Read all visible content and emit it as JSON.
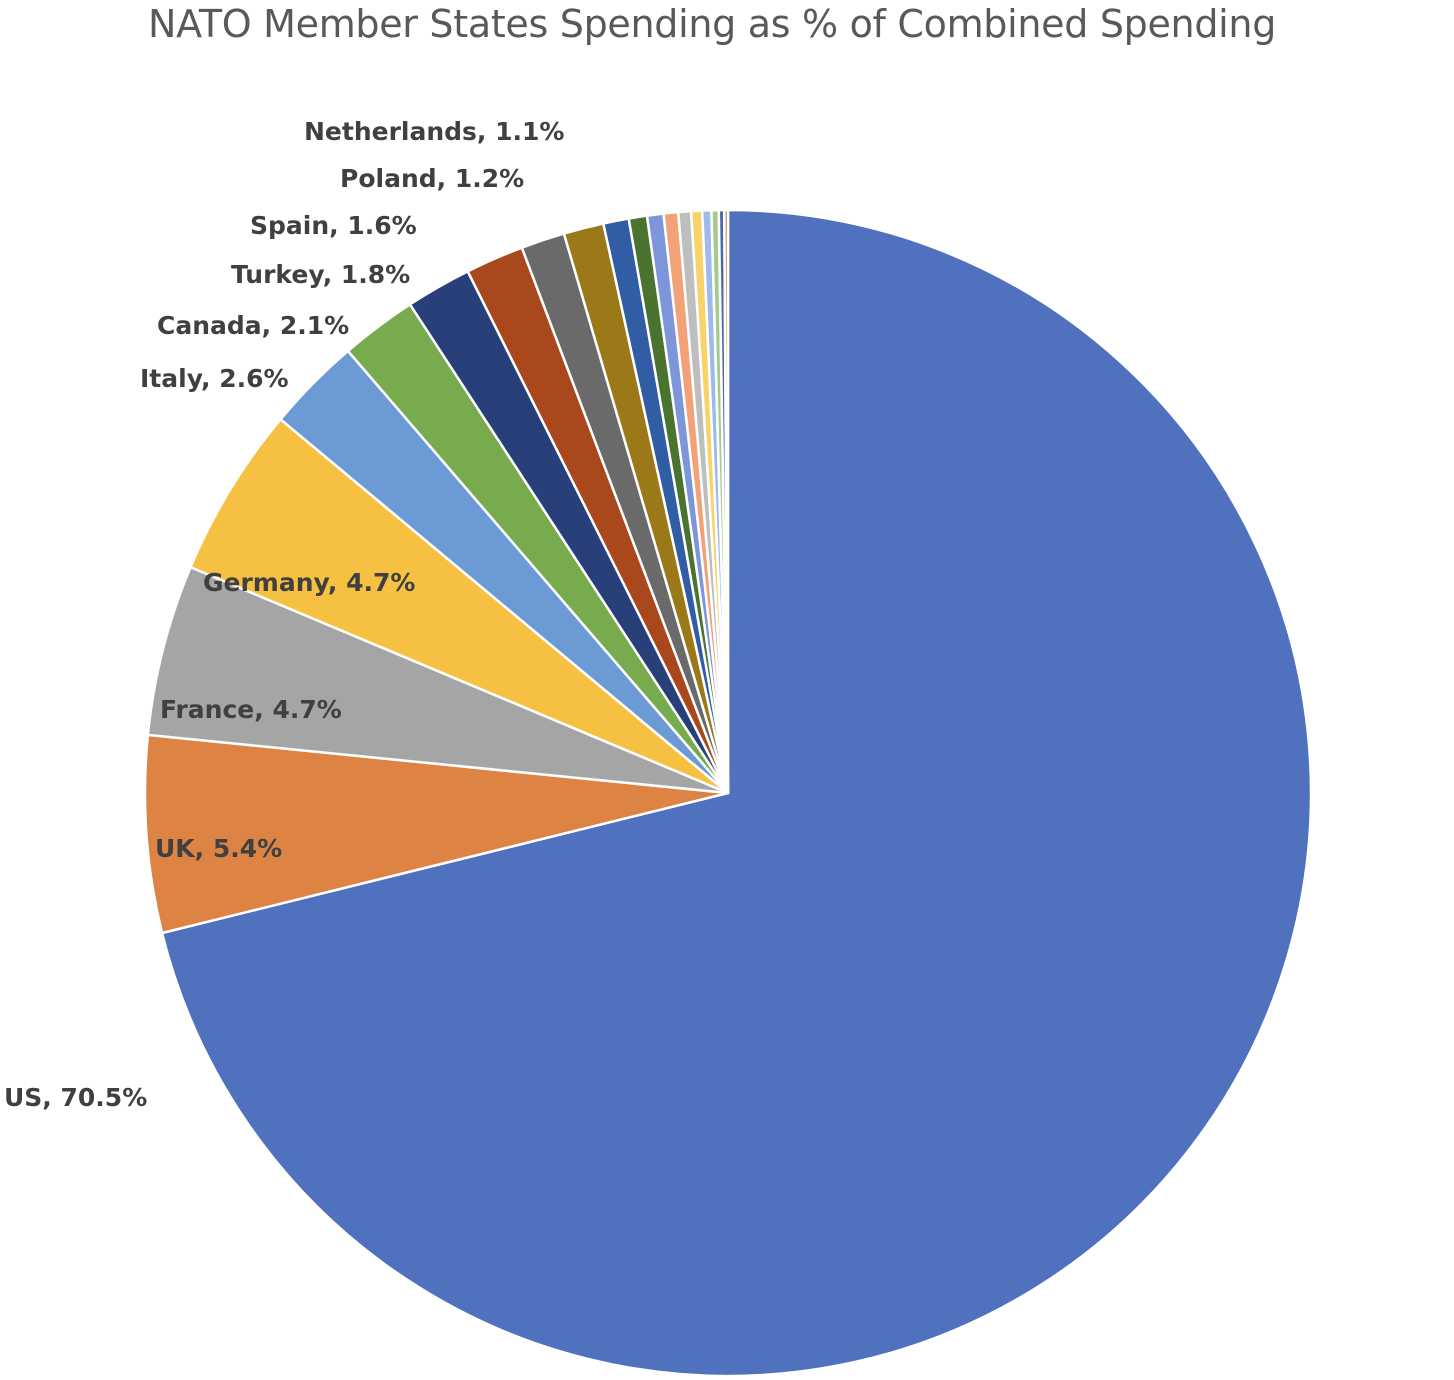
{
  "chart_data": {
    "type": "pie",
    "title": "NATO Member States Spending as % of Combined Spending",
    "unit": "%",
    "slices": [
      {
        "label": "US, 70.5%",
        "value": 70.5,
        "color": "#4f71be"
      },
      {
        "label": "UK, 5.4%",
        "value": 5.4,
        "color": "#dd8344"
      },
      {
        "label": "France, 4.7%",
        "value": 4.7,
        "color": "#a5a5a5"
      },
      {
        "label": "Germany, 4.7%",
        "value": 4.7,
        "color": "#f6c143"
      },
      {
        "label": "Italy, 2.6%",
        "value": 2.6,
        "color": "#6c9ad5"
      },
      {
        "label": "Canada, 2.1%",
        "value": 2.1,
        "color": "#78ab4d"
      },
      {
        "label": "Turkey, 1.8%",
        "value": 1.8,
        "color": "#283f7a"
      },
      {
        "label": "Spain, 1.6%",
        "value": 1.6,
        "color": "#a9481c"
      },
      {
        "label": "Poland, 1.2%",
        "value": 1.2,
        "color": "#6a6a6a"
      },
      {
        "label": "Netherlands, 1.1%",
        "value": 1.1,
        "color": "#9b7818"
      },
      {
        "label": "",
        "value": 0.7,
        "color": "#305da3"
      },
      {
        "label": "",
        "value": 0.5,
        "color": "#4a7330"
      },
      {
        "label": "",
        "value": 0.45,
        "color": "#7d96d9"
      },
      {
        "label": "",
        "value": 0.4,
        "color": "#f3a177"
      },
      {
        "label": "",
        "value": 0.35,
        "color": "#bebebe"
      },
      {
        "label": "",
        "value": 0.3,
        "color": "#f8d36a"
      },
      {
        "label": "",
        "value": 0.25,
        "color": "#9cbbe8"
      },
      {
        "label": "",
        "value": 0.2,
        "color": "#a5cb8c"
      },
      {
        "label": "",
        "value": 0.15,
        "color": "#4d6aa8"
      },
      {
        "label": "",
        "value": 0.1,
        "color": "#c88660"
      }
    ]
  }
}
